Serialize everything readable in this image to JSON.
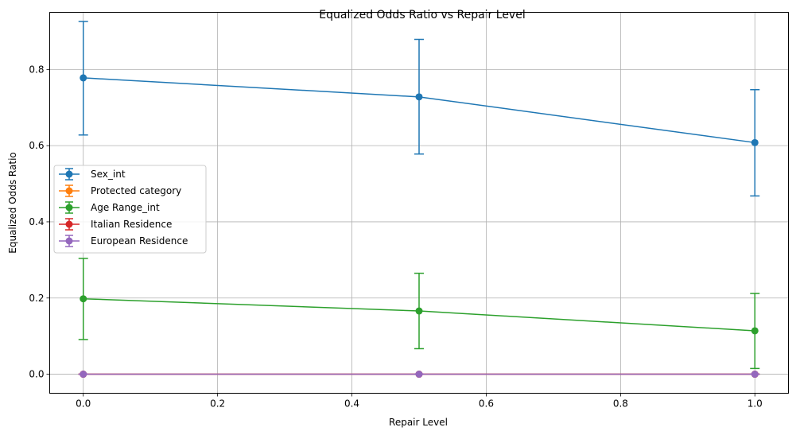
{
  "chart_data": {
    "type": "line",
    "title": "Equalized Odds Ratio vs Repair Level",
    "xlabel": "Repair Level",
    "ylabel": "Equalized Odds Ratio",
    "xlim": [
      -0.05,
      1.05
    ],
    "ylim": [
      -0.05,
      0.95
    ],
    "x_ticks": [
      0.0,
      0.2,
      0.4,
      0.6,
      0.8,
      1.0
    ],
    "x_tick_labels": [
      "0.0",
      "0.2",
      "0.4",
      "0.6",
      "0.8",
      "1.0"
    ],
    "y_ticks": [
      0.0,
      0.2,
      0.4,
      0.6,
      0.8
    ],
    "y_tick_labels": [
      "0.0",
      "0.2",
      "0.4",
      "0.6",
      "0.8"
    ],
    "grid": true,
    "legend_position": "center-left",
    "x": [
      0.0,
      0.5,
      1.0
    ],
    "series": [
      {
        "name": "Sex_int",
        "color": "#1f77b4",
        "values": [
          0.778,
          0.728,
          0.608
        ],
        "err_low": [
          0.628,
          0.578,
          0.468
        ],
        "err_high": [
          0.926,
          0.879,
          0.747
        ]
      },
      {
        "name": "Protected category",
        "color": "#ff7f0e",
        "values": [
          0.0,
          0.0,
          0.0
        ],
        "err_low": [
          0.0,
          0.0,
          0.0
        ],
        "err_high": [
          0.0,
          0.0,
          0.0
        ]
      },
      {
        "name": "Age Range_int",
        "color": "#2ca02c",
        "values": [
          0.198,
          0.166,
          0.114
        ],
        "err_low": [
          0.091,
          0.067,
          0.015
        ],
        "err_high": [
          0.304,
          0.265,
          0.212
        ]
      },
      {
        "name": "Italian Residence",
        "color": "#d62728",
        "values": [
          0.0,
          0.0,
          0.0
        ],
        "err_low": [
          0.0,
          0.0,
          0.0
        ],
        "err_high": [
          0.0,
          0.0,
          0.0
        ]
      },
      {
        "name": "European Residence",
        "color": "#9467bd",
        "values": [
          0.0,
          0.0,
          0.0
        ],
        "err_low": [
          0.0,
          0.0,
          0.0
        ],
        "err_high": [
          0.0,
          0.0,
          0.0
        ]
      }
    ]
  }
}
